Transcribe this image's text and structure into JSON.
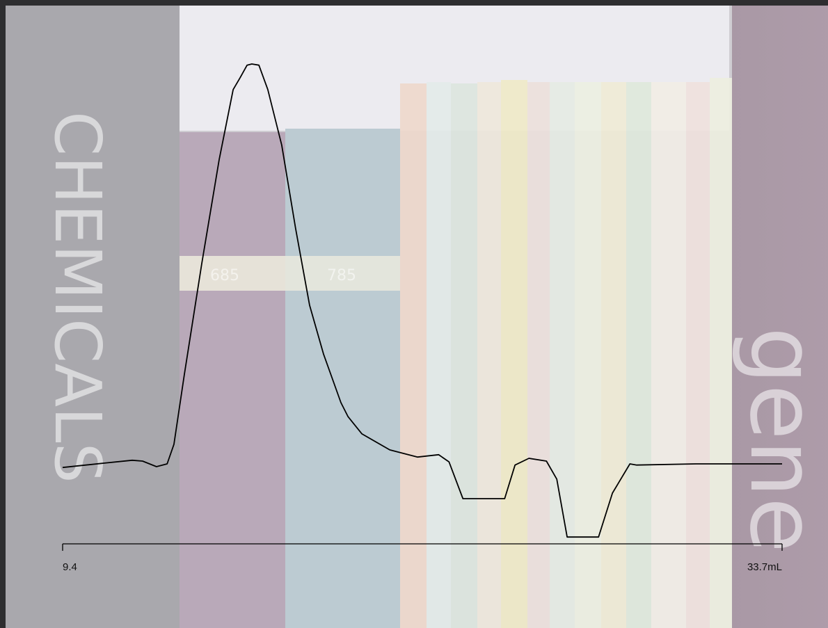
{
  "chart_data": {
    "type": "line",
    "x": [
      9.4,
      10.81,
      11.75,
      12.1,
      12.57,
      12.93,
      13.16,
      13.51,
      14.1,
      14.69,
      15.16,
      15.39,
      15.63,
      15.79,
      16.03,
      16.33,
      16.8,
      17.27,
      17.74,
      18.21,
      18.8,
      19.04,
      19.51,
      20.45,
      21.39,
      22.1,
      22.45,
      22.92,
      23.51,
      24.33,
      24.68,
      25.15,
      25.74,
      26.09,
      26.44,
      27.5,
      27.97,
      28.56,
      28.79,
      30.79,
      33.7
    ],
    "series": [
      {
        "color": "#000000",
        "values": [
          -0.9,
          0.2,
          0.9,
          0.7,
          -0.7,
          0,
          4.9,
          22.3,
          50.1,
          76.2,
          93.6,
          96.5,
          99.7,
          100,
          99.7,
          93.6,
          79.7,
          58.8,
          39.7,
          27.5,
          15.3,
          11.8,
          7.5,
          3.5,
          1.7,
          2.3,
          0.5,
          -8.7,
          -8.7,
          -8.7,
          -0.3,
          1.4,
          0.7,
          -3.8,
          -18.3,
          -18.3,
          -7.3,
          0,
          -0.3,
          0,
          0
        ]
      }
    ],
    "xlim": [
      9.4,
      33.7
    ],
    "xticks": [
      9.4,
      {
        "value": 33.7,
        "label": "33.7mL"
      }
    ],
    "ylim": [
      -20,
      100
    ]
  },
  "background": {
    "texts": [
      "CHEMICALS",
      "gene",
      "685",
      "785"
    ]
  }
}
